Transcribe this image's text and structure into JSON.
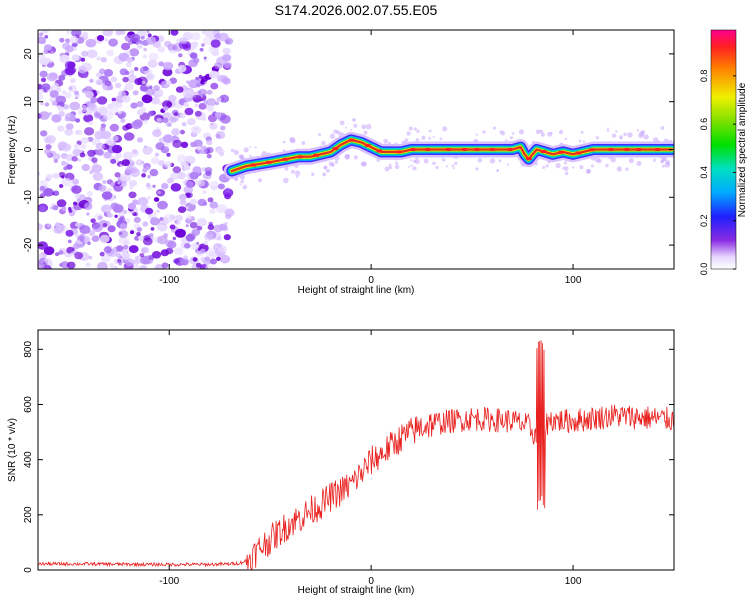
{
  "title": "S174.2026.002.07.55.E05",
  "colors": {
    "snr_line": "#e8201e",
    "ridge_core": "#e03020",
    "noise": "#7a18e6",
    "frame": "#000000"
  },
  "chart_data": [
    {
      "type": "heatmap",
      "title": "S174.2026.002.07.55.E05",
      "xlabel": "Height of straight line (km)",
      "ylabel": "Frequency (Hz)",
      "xlim": [
        -165,
        150
      ],
      "ylim": [
        -25,
        25
      ],
      "xticks": [
        -100,
        0,
        100
      ],
      "yticks": [
        -20,
        -10,
        0,
        10,
        20
      ],
      "colorbar": {
        "label": "Normalized spectral amplitude",
        "range": [
          0,
          0.99
        ],
        "ticks": [
          "0.0",
          "0.2",
          "0.4",
          "0.6",
          "0.8"
        ]
      },
      "noise_region": [
        -165,
        -70
      ],
      "ridge": {
        "x": [
          -69,
          -62,
          -55,
          -48,
          -42,
          -36,
          -30,
          -25,
          -20,
          -15,
          -10,
          -5,
          0,
          5,
          10,
          15,
          20,
          30,
          45,
          60,
          70,
          74,
          76,
          78,
          82,
          86,
          90,
          95,
          100,
          110,
          120,
          130,
          140,
          149
        ],
        "y": [
          -4.5,
          -3.5,
          -3,
          -2.5,
          -2,
          -1.5,
          -1.5,
          -1,
          -0.5,
          1,
          2,
          1.5,
          0.5,
          -0.5,
          -0.5,
          -0.5,
          0,
          0,
          0,
          0,
          0,
          0.5,
          -1,
          -2,
          0,
          -0.5,
          -1,
          -0.5,
          -1,
          0,
          0,
          0,
          0,
          0
        ]
      }
    },
    {
      "type": "line",
      "xlabel": "Height of straight line (km)",
      "ylabel": "SNR (10 * v/v)",
      "xlim": [
        -165,
        150
      ],
      "ylim": [
        0,
        870
      ],
      "xticks": [
        -100,
        0,
        100
      ],
      "yticks": [
        0,
        200,
        400,
        600,
        800
      ],
      "series": [
        {
          "name": "SNR",
          "x": [
            -165,
            -140,
            -110,
            -80,
            -70,
            -65,
            -60,
            -55,
            -50,
            -45,
            -40,
            -35,
            -30,
            -25,
            -20,
            -15,
            -10,
            -5,
            0,
            5,
            10,
            15,
            20,
            25,
            30,
            40,
            50,
            60,
            70,
            75,
            78,
            80,
            82,
            84,
            86,
            88,
            90,
            95,
            100,
            110,
            120,
            130,
            140,
            150
          ],
          "y": [
            22,
            22,
            20,
            20,
            22,
            25,
            40,
            80,
            110,
            140,
            170,
            190,
            215,
            235,
            265,
            285,
            310,
            350,
            395,
            420,
            450,
            480,
            500,
            520,
            530,
            540,
            550,
            545,
            540,
            530,
            520,
            500,
            480,
            490,
            520,
            540,
            545,
            540,
            540,
            550,
            560,
            555,
            550,
            545
          ]
        }
      ],
      "spike": {
        "x": 84,
        "max": 850,
        "min": 215
      }
    }
  ]
}
